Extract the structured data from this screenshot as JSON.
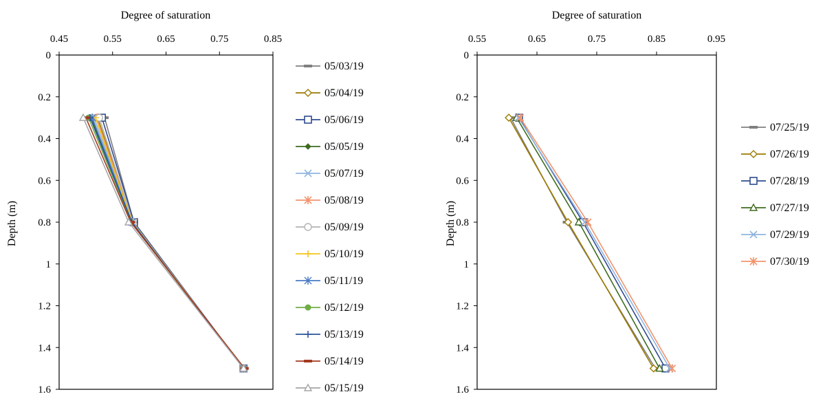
{
  "chart_data": [
    {
      "type": "line",
      "xlabel": "Degree of saturation",
      "ylabel": "Depth (m)",
      "xlim": [
        0.45,
        0.85
      ],
      "ylim": [
        0,
        1.6
      ],
      "x_ticks": [
        "0.45",
        "0.55",
        "0.65",
        "0.75",
        "0.85"
      ],
      "y_ticks": [
        "0",
        "0.2",
        "0.4",
        "0.6",
        "0.8",
        "1",
        "1.2",
        "1.4",
        "1.6"
      ],
      "x_axis_position": "top",
      "y_inverted": true,
      "grid": false,
      "legend_position": "right",
      "depths": [
        0.3,
        0.8,
        1.5
      ],
      "series": [
        {
          "name": "05/03/19",
          "color": "#7f7f7f",
          "marker": "dash",
          "values": [
            0.535,
            0.59,
            0.795
          ]
        },
        {
          "name": "05/04/19",
          "color": "#9c7a00",
          "marker": "diamond-open",
          "values": [
            0.522,
            0.588,
            0.795
          ]
        },
        {
          "name": "05/06/19",
          "color": "#2f4b8f",
          "marker": "square-open",
          "values": [
            0.53,
            0.59,
            0.795
          ]
        },
        {
          "name": "05/05/19",
          "color": "#3d6b1f",
          "marker": "diamond",
          "values": [
            0.51,
            0.586,
            0.795
          ]
        },
        {
          "name": "05/07/19",
          "color": "#8fb4de",
          "marker": "x",
          "values": [
            0.515,
            0.587,
            0.795
          ]
        },
        {
          "name": "05/08/19",
          "color": "#f2936b",
          "marker": "star",
          "values": [
            0.52,
            0.588,
            0.795
          ]
        },
        {
          "name": "05/09/19",
          "color": "#b3b3b3",
          "marker": "circle-open",
          "values": [
            0.525,
            0.588,
            0.795
          ]
        },
        {
          "name": "05/10/19",
          "color": "#f5c518",
          "marker": "plus",
          "values": [
            0.518,
            0.587,
            0.795
          ]
        },
        {
          "name": "05/11/19",
          "color": "#4a7cc4",
          "marker": "asterisk",
          "values": [
            0.512,
            0.586,
            0.795
          ]
        },
        {
          "name": "05/12/19",
          "color": "#70ad47",
          "marker": "circle",
          "values": [
            0.505,
            0.585,
            0.795
          ]
        },
        {
          "name": "05/13/19",
          "color": "#2d5597",
          "marker": "plus",
          "values": [
            0.508,
            0.586,
            0.795
          ]
        },
        {
          "name": "05/14/19",
          "color": "#a33a1f",
          "marker": "dash",
          "values": [
            0.5,
            0.584,
            0.797
          ]
        },
        {
          "name": "05/15/19",
          "color": "#a6a6a6",
          "marker": "triangle-open",
          "values": [
            0.495,
            0.58,
            0.795
          ]
        }
      ]
    },
    {
      "type": "line",
      "xlabel": "Degree of saturation",
      "ylabel": "Depth (m)",
      "xlim": [
        0.55,
        0.95
      ],
      "ylim": [
        0,
        1.6
      ],
      "x_ticks": [
        "0.55",
        "0.65",
        "0.75",
        "0.85",
        "0.95"
      ],
      "y_ticks": [
        "0",
        "0.2",
        "0.4",
        "0.6",
        "0.8",
        "1",
        "1.2",
        "1.4",
        "1.6"
      ],
      "x_axis_position": "top",
      "y_inverted": true,
      "grid": false,
      "legend_position": "right",
      "depths": [
        0.3,
        0.8,
        1.5
      ],
      "series": [
        {
          "name": "07/25/19",
          "color": "#7f7f7f",
          "marker": "dash",
          "values": [
            0.606,
            0.7,
            0.848
          ]
        },
        {
          "name": "07/26/19",
          "color": "#9c7a00",
          "marker": "diamond-open",
          "values": [
            0.603,
            0.702,
            0.845
          ]
        },
        {
          "name": "07/28/19",
          "color": "#2f4b8f",
          "marker": "square-open",
          "values": [
            0.62,
            0.727,
            0.865
          ]
        },
        {
          "name": "07/27/19",
          "color": "#3d6b1f",
          "marker": "triangle-open",
          "values": [
            0.616,
            0.72,
            0.855
          ]
        },
        {
          "name": "07/29/19",
          "color": "#8fb4de",
          "marker": "x",
          "values": [
            0.619,
            0.73,
            0.872
          ]
        },
        {
          "name": "07/30/19",
          "color": "#f2936b",
          "marker": "star",
          "values": [
            0.622,
            0.735,
            0.876
          ]
        }
      ]
    }
  ]
}
